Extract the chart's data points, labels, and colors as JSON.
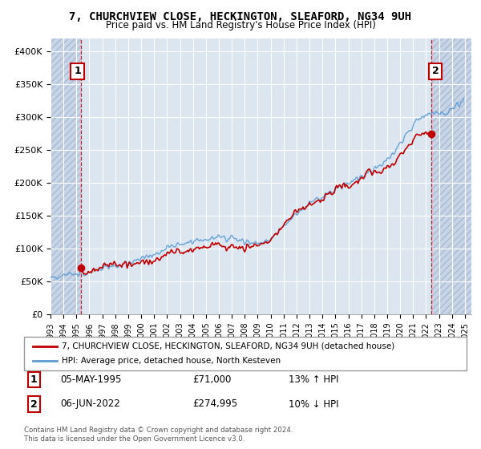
{
  "title": "7, CHURCHVIEW CLOSE, HECKINGTON, SLEAFORD, NG34 9UH",
  "subtitle": "Price paid vs. HM Land Registry's House Price Index (HPI)",
  "legend_line1": "7, CHURCHVIEW CLOSE, HECKINGTON, SLEAFORD, NG34 9UH (detached house)",
  "legend_line2": "HPI: Average price, detached house, North Kesteven",
  "annotation1_label": "1",
  "annotation2_label": "2",
  "footer": "Contains HM Land Registry data © Crown copyright and database right 2024.\nThis data is licensed under the Open Government Licence v3.0.",
  "hpi_color": "#5b9bd5",
  "price_color": "#c00000",
  "dashed_vline_color": "#c00000",
  "hatch_color": "#d0d8e8",
  "plot_bg_color": "#dce6f0",
  "ylim": [
    0,
    420000
  ],
  "xlim_start": 1993,
  "xlim_end": 2025.5,
  "yticks": [
    0,
    50000,
    100000,
    150000,
    200000,
    250000,
    300000,
    350000,
    400000
  ],
  "ytick_labels": [
    "£0",
    "£50K",
    "£100K",
    "£150K",
    "£200K",
    "£250K",
    "£300K",
    "£350K",
    "£400K"
  ],
  "sale1_x": 1995.37,
  "sale1_y": 71000,
  "sale2_x": 2022.42,
  "sale2_y": 274995,
  "table_rows": [
    [
      "1",
      "05-MAY-1995",
      "£71,000",
      "13% ↑ HPI"
    ],
    [
      "2",
      "06-JUN-2022",
      "£274,995",
      "10% ↓ HPI"
    ]
  ]
}
